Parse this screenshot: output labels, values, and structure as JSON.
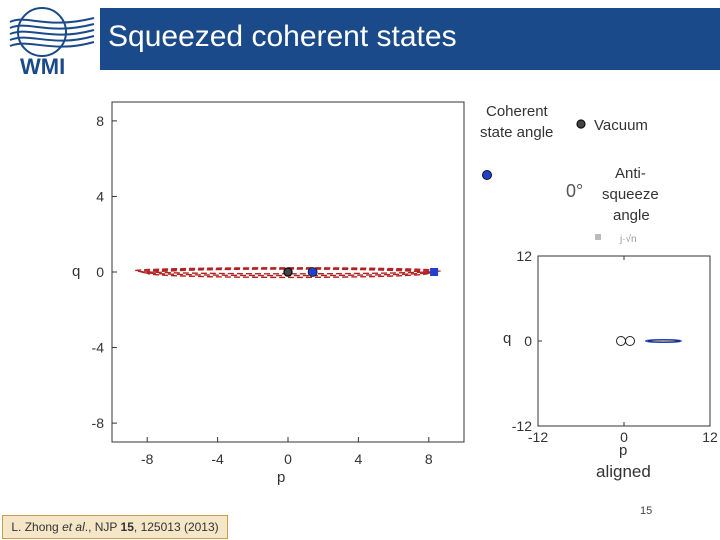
{
  "slide": {
    "title": "Squeezed coherent states",
    "logo_text": "WMI",
    "citation": {
      "author": "L. Zhong ",
      "etal": "et al",
      "journal": "., NJP ",
      "volume": "15",
      "rest": ", 125013 (2013)"
    },
    "page_number": "15"
  },
  "colors": {
    "header_bg": "#1a4a8a",
    "ellipse": "#b22222",
    "coherent": "#1f3fcf",
    "vacuum": "#222222",
    "citation_bg": "#f5e6c8"
  },
  "chart_data": [
    {
      "type": "scatter",
      "xlabel": "p",
      "ylabel": "q",
      "xlim": [
        -10,
        10
      ],
      "ylim": [
        -9,
        9
      ],
      "xticks": [
        "-8",
        "-4",
        "0",
        "4",
        "8"
      ],
      "yticks": [
        "8",
        "4",
        "0",
        "-4",
        "-8"
      ],
      "points": {
        "vacuum": {
          "x": 0,
          "y": 0
        },
        "coherent": {
          "x": 1.4,
          "y": 0
        },
        "marker": {
          "x": 8.3,
          "y": 0
        }
      },
      "squeezed_ellipse": {
        "center": [
          0,
          0
        ],
        "semi_p": 8,
        "semi_q": 0.15
      },
      "legend": {
        "coherent_label": "Coherent state angle",
        "vacuum_label": "Vacuum",
        "angle_value": "0°",
        "antisqueeze_label": "Anti-squeeze angle"
      }
    },
    {
      "type": "scatter",
      "xlabel": "p",
      "ylabel": "q",
      "xlim": [
        -12,
        12
      ],
      "ylim": [
        -12,
        12
      ],
      "xticks": [
        "-12",
        "0",
        "12"
      ],
      "yticks": [
        "12",
        "0",
        "-12"
      ],
      "caption": "aligned"
    }
  ]
}
